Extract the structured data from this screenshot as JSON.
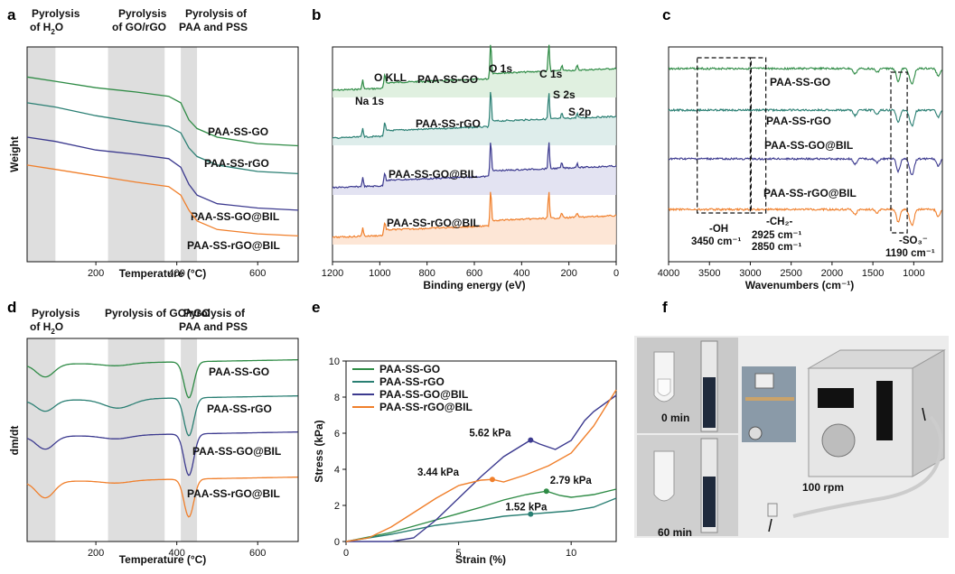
{
  "panel_labels": [
    "a",
    "b",
    "c",
    "d",
    "e",
    "f"
  ],
  "colors": {
    "green": "#2e8b45",
    "teal": "#2a7f73",
    "purple": "#3c3a8f",
    "orange": "#f07f2b",
    "shade": "#dedede"
  },
  "chart_data": [
    {
      "panel": "a",
      "type": "line",
      "xlabel": "Temperature (°C)",
      "ylabel": "Weight",
      "xlim": [
        30,
        700
      ],
      "xticks": [
        "200",
        "400",
        "600"
      ],
      "regions": [
        {
          "label": "Pyrolysis of H2O",
          "range": [
            30,
            100
          ]
        },
        {
          "label": "Pyrolysis of GO/rGO",
          "range": [
            230,
            370
          ]
        },
        {
          "label": "Pyrolysis of PAA and PSS",
          "range": [
            410,
            450
          ]
        }
      ],
      "series": [
        {
          "name": "PAA-SS-GO",
          "color": "green",
          "x": [
            30,
            100,
            200,
            300,
            380,
            410,
            430,
            450,
            500,
            600,
            700
          ],
          "y": [
            0.86,
            0.84,
            0.81,
            0.79,
            0.77,
            0.74,
            0.66,
            0.62,
            0.58,
            0.55,
            0.54
          ]
        },
        {
          "name": "PAA-SS-rGO",
          "color": "teal",
          "x": [
            30,
            100,
            200,
            300,
            380,
            410,
            430,
            450,
            500,
            600,
            700
          ],
          "y": [
            0.74,
            0.72,
            0.68,
            0.65,
            0.63,
            0.6,
            0.53,
            0.49,
            0.45,
            0.42,
            0.41
          ]
        },
        {
          "name": "PAA-SS-GO@BIL",
          "color": "purple",
          "x": [
            30,
            100,
            200,
            300,
            380,
            410,
            430,
            450,
            500,
            600,
            700
          ],
          "y": [
            0.58,
            0.56,
            0.52,
            0.5,
            0.48,
            0.44,
            0.36,
            0.31,
            0.27,
            0.25,
            0.24
          ]
        },
        {
          "name": "PAA-SS-rGO@BIL",
          "color": "orange",
          "x": [
            30,
            100,
            200,
            300,
            380,
            410,
            430,
            450,
            500,
            600,
            700
          ],
          "y": [
            0.45,
            0.43,
            0.4,
            0.37,
            0.35,
            0.31,
            0.24,
            0.19,
            0.15,
            0.13,
            0.12
          ]
        }
      ]
    },
    {
      "panel": "b",
      "type": "line",
      "xlabel": "Binding energy (eV)",
      "xlim": [
        1200,
        0
      ],
      "xticks": [
        "1200",
        "1000",
        "800",
        "600",
        "400",
        "200",
        "0"
      ],
      "peak_labels": [
        "O KLL",
        "Na 1s",
        "O 1s",
        "C 1s",
        "S 2s",
        "S 2p"
      ],
      "series": [
        {
          "name": "PAA-SS-GO",
          "color": "green"
        },
        {
          "name": "PAA-SS-rGO",
          "color": "teal"
        },
        {
          "name": "PAA-SS-GO@BIL",
          "color": "purple"
        },
        {
          "name": "PAA-SS-rGO@BIL",
          "color": "orange"
        }
      ]
    },
    {
      "panel": "c",
      "type": "line",
      "xlabel": "Wavenumbers (cm⁻¹)",
      "xlim": [
        4000,
        650
      ],
      "xticks": [
        "4000",
        "3500",
        "3000",
        "2500",
        "2000",
        "1500",
        "1000"
      ],
      "band_labels": [
        "-OH",
        "3450 cm⁻¹",
        "-CH₂-",
        "2925 cm⁻¹",
        "2850 cm⁻¹",
        "-SO₃⁻",
        "1190 cm⁻¹"
      ],
      "series": [
        {
          "name": "PAA-SS-GO",
          "color": "green"
        },
        {
          "name": "PAA-SS-rGO",
          "color": "teal"
        },
        {
          "name": "PAA-SS-GO@BIL",
          "color": "purple"
        },
        {
          "name": "PAA-SS-rGO@BIL",
          "color": "orange"
        }
      ]
    },
    {
      "panel": "d",
      "type": "line",
      "xlabel": "Temperature (°C)",
      "ylabel": "dm/dt",
      "xlim": [
        30,
        700
      ],
      "xticks": [
        "200",
        "400",
        "600"
      ],
      "regions": [
        {
          "label": "Pyrolysis of H2O",
          "range": [
            30,
            100
          ]
        },
        {
          "label": "Pyrolysis of GO/rGO",
          "range": [
            230,
            370
          ]
        },
        {
          "label": "Pyrolysis of PAA and PSS",
          "range": [
            410,
            450
          ]
        }
      ],
      "series": [
        {
          "name": "PAA-SS-GO",
          "color": "green"
        },
        {
          "name": "PAA-SS-rGO",
          "color": "teal"
        },
        {
          "name": "PAA-SS-GO@BIL",
          "color": "purple"
        },
        {
          "name": "PAA-SS-rGO@BIL",
          "color": "orange"
        }
      ]
    },
    {
      "panel": "e",
      "type": "line",
      "xlabel": "Strain (%)",
      "ylabel": "Stress (kPa)",
      "xlim": [
        0,
        12
      ],
      "ylim": [
        0,
        10
      ],
      "xticks": [
        "0",
        "5",
        "10"
      ],
      "yticks": [
        "0",
        "2",
        "4",
        "6",
        "8",
        "10"
      ],
      "legend": "top-left",
      "series": [
        {
          "name": "PAA-SS-GO",
          "color": "green",
          "x": [
            0,
            2,
            4,
            6,
            7,
            8,
            8.9,
            9.5,
            10,
            11,
            12
          ],
          "y": [
            0,
            0.5,
            1.2,
            1.9,
            2.3,
            2.6,
            2.79,
            2.55,
            2.45,
            2.6,
            2.9
          ]
        },
        {
          "name": "PAA-SS-rGO",
          "color": "teal",
          "x": [
            0,
            2,
            4,
            6,
            7,
            8.2,
            9,
            10,
            11,
            12
          ],
          "y": [
            0,
            0.4,
            0.9,
            1.2,
            1.4,
            1.52,
            1.6,
            1.7,
            1.9,
            2.4
          ]
        },
        {
          "name": "PAA-SS-GO@BIL",
          "color": "purple",
          "x": [
            0,
            2,
            3,
            4,
            5,
            6,
            7,
            8.2,
            8.6,
            9.3,
            10,
            10.6,
            11,
            12
          ],
          "y": [
            0,
            0,
            0.2,
            1.2,
            2.4,
            3.6,
            4.7,
            5.62,
            5.4,
            5.1,
            5.6,
            6.7,
            7.2,
            8.1
          ]
        },
        {
          "name": "PAA-SS-rGO@BIL",
          "color": "orange",
          "x": [
            0,
            1,
            2,
            3,
            4,
            5,
            6,
            6.5,
            7,
            8,
            9,
            10,
            11,
            12
          ],
          "y": [
            0,
            0.2,
            0.8,
            1.6,
            2.4,
            3.1,
            3.4,
            3.44,
            3.3,
            3.7,
            4.2,
            4.9,
            6.4,
            8.4
          ]
        }
      ],
      "annotations": [
        {
          "label": "5.62 kPa",
          "x": 8.2,
          "y": 5.62,
          "color": "purple"
        },
        {
          "label": "3.44 kPa",
          "x": 6.5,
          "y": 3.44,
          "color": "orange"
        },
        {
          "label": "2.79 kPa",
          "x": 8.9,
          "y": 2.79,
          "color": "green"
        },
        {
          "label": "1.52 kPa",
          "x": 8.2,
          "y": 1.52,
          "color": "teal"
        }
      ]
    }
  ],
  "panel_f": {
    "labels": [
      "0 min",
      "60 min",
      "100 rpm"
    ]
  }
}
